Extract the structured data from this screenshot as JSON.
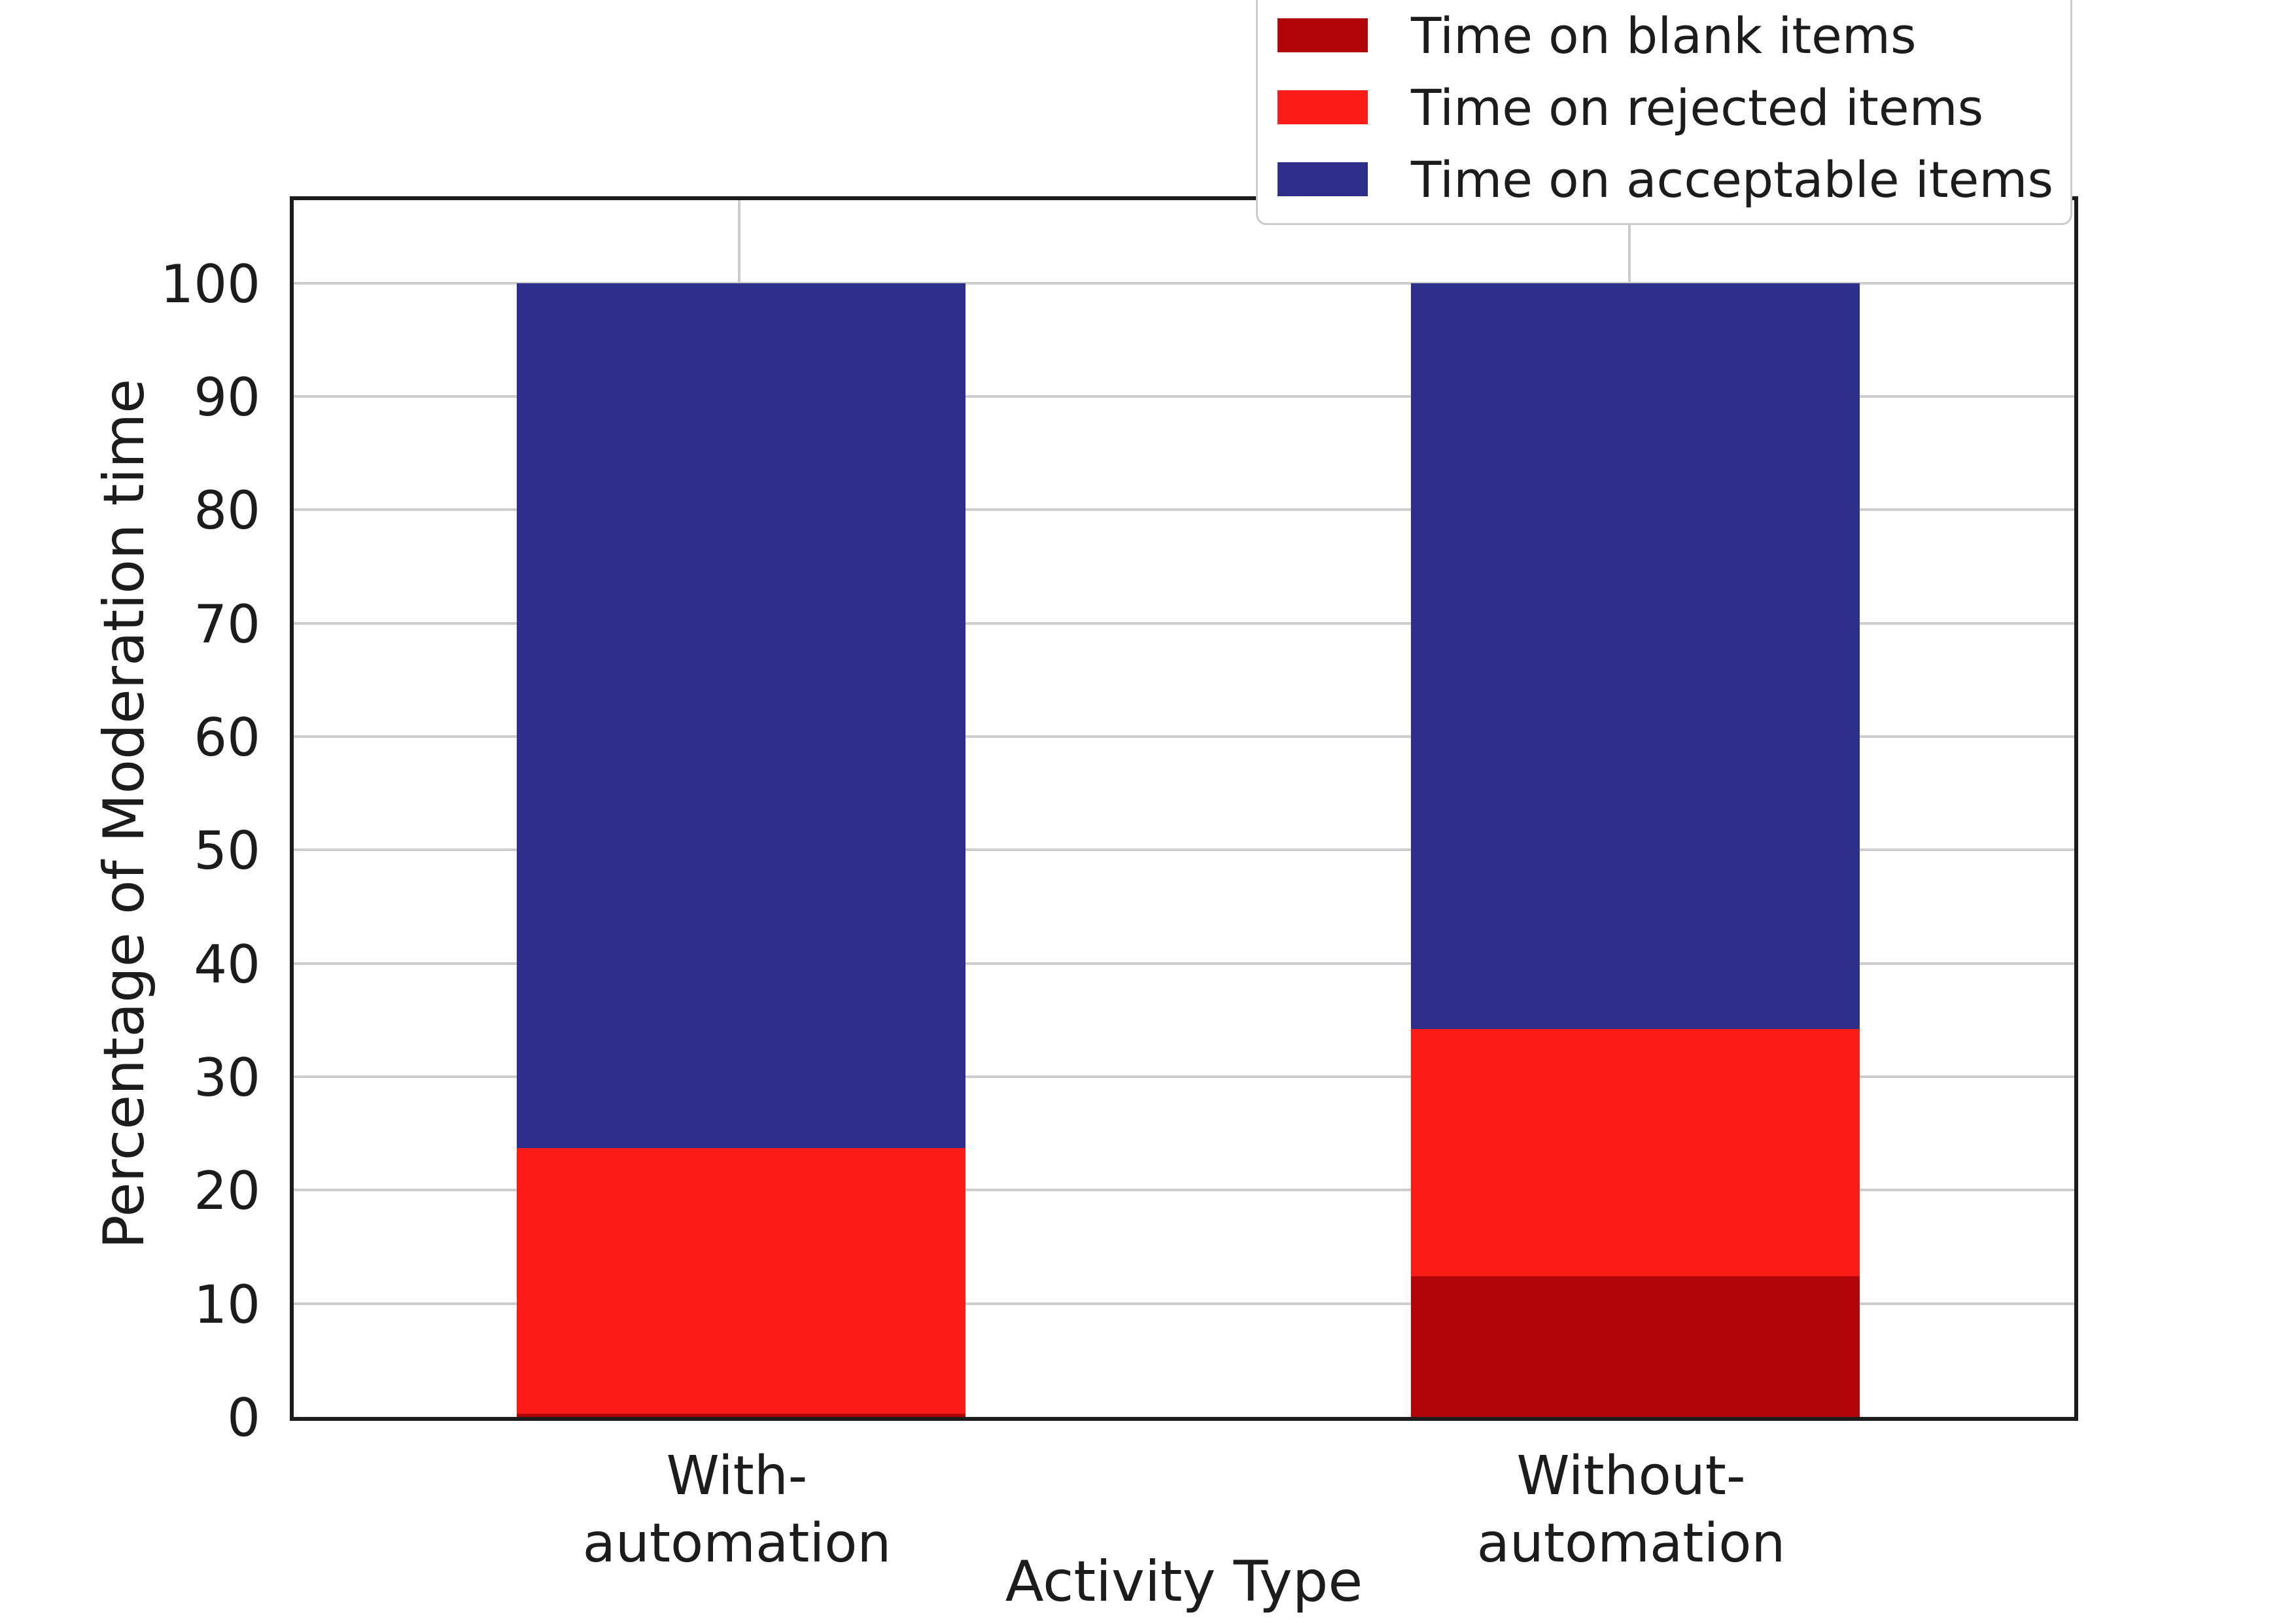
{
  "chart_data": {
    "type": "bar",
    "subtype": "stacked",
    "title": "",
    "xlabel": "Activity Type",
    "ylabel": "Percentage of Moderation time",
    "categories": [
      "With-\nautomation",
      "Without-\nautomation"
    ],
    "series": [
      {
        "name": "Time on blank items",
        "color": "#b00409",
        "values": [
          0.3,
          12.4
        ]
      },
      {
        "name": "Time on rejected items",
        "color": "#fb1b17",
        "values": [
          23.4,
          21.8
        ]
      },
      {
        "name": "Time on acceptable items",
        "color": "#2e2f8b",
        "values": [
          76.3,
          65.8
        ]
      }
    ],
    "yticks": [
      0,
      10,
      20,
      30,
      40,
      50,
      60,
      70,
      80,
      90,
      100
    ],
    "ylim": [
      0,
      108
    ],
    "grid": true,
    "grid_color": "#cdcdcd",
    "legend_position": "upper right",
    "text_color": "#1c1c1c"
  }
}
